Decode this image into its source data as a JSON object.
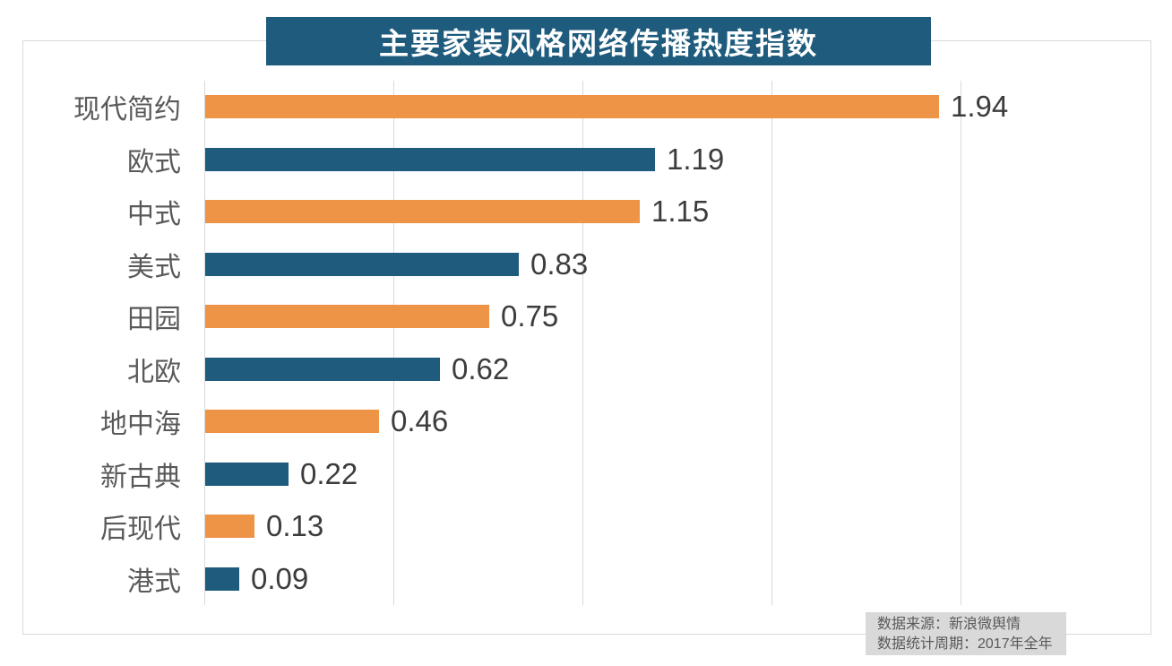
{
  "title": "主要家装风格网络传播热度指数",
  "colors": {
    "banner_bg": "#1e5b7d",
    "bar_blue": "#1e5b7d",
    "bar_orange": "#ee9446",
    "gridline": "#d9d9d9",
    "category_text": "#595959",
    "value_text": "#3c3c3c",
    "source_bg": "#d9d9d9",
    "source_text": "#595959"
  },
  "source": {
    "line1": "数据来源：新浪微舆情",
    "line2": "数据统计周期：2017年全年"
  },
  "chart_data": {
    "type": "bar",
    "orientation": "horizontal",
    "title": "主要家装风格网络传播热度指数",
    "categories": [
      "现代简约",
      "欧式",
      "中式",
      "美式",
      "田园",
      "北欧",
      "地中海",
      "新古典",
      "后现代",
      "港式"
    ],
    "values": [
      1.94,
      1.19,
      1.15,
      0.83,
      0.75,
      0.62,
      0.46,
      0.22,
      0.13,
      0.09
    ],
    "value_labels": [
      "1.94",
      "1.19",
      "1.15",
      "0.83",
      "0.75",
      "0.62",
      "0.46",
      "0.22",
      "0.13",
      "0.09"
    ],
    "bar_color_pattern": [
      "#ee9446",
      "#1e5b7d"
    ],
    "xlim": [
      0,
      2.5
    ],
    "grid_interval": 0.5,
    "grid": true,
    "legend": false,
    "xlabel": "",
    "ylabel": ""
  }
}
